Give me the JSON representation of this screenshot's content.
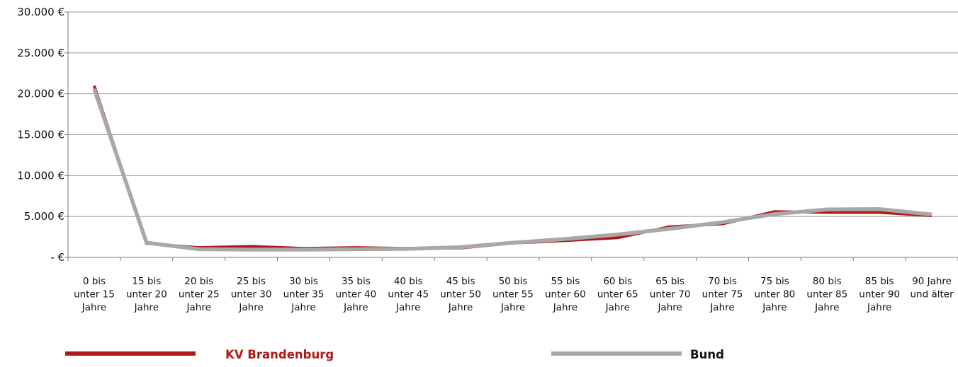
{
  "chart_data": {
    "type": "line",
    "categories": [
      [
        "0 bis",
        "unter 15",
        "Jahre"
      ],
      [
        "15 bis",
        "unter 20",
        "Jahre"
      ],
      [
        "20 bis",
        "unter 25",
        "Jahre"
      ],
      [
        "25 bis",
        "unter 30",
        "Jahre"
      ],
      [
        "30 bis",
        "unter 35",
        "Jahre"
      ],
      [
        "35 bis",
        "unter 40",
        "Jahre"
      ],
      [
        "40 bis",
        "unter 45",
        "Jahre"
      ],
      [
        "45 bis",
        "unter 50",
        "Jahre"
      ],
      [
        "50 bis",
        "unter 55",
        "Jahre"
      ],
      [
        "55 bis",
        "unter 60",
        "Jahre"
      ],
      [
        "60 bis",
        "unter 65",
        "Jahre"
      ],
      [
        "65 bis",
        "unter 70",
        "Jahre"
      ],
      [
        "70 bis",
        "unter 75",
        "Jahre"
      ],
      [
        "75 bis",
        "unter 80",
        "Jahre"
      ],
      [
        "80 bis",
        "unter 85",
        "Jahre"
      ],
      [
        "85 bis",
        "unter 90",
        "Jahre"
      ],
      [
        "90 Jahre",
        "und älter"
      ]
    ],
    "series": [
      {
        "name": "KV Brandenburg",
        "color": "#b01818",
        "values": [
          21000,
          1700,
          1200,
          1350,
          1100,
          1200,
          1100,
          1150,
          1750,
          2050,
          2400,
          3750,
          4100,
          5600,
          5500,
          5500,
          5100
        ]
      },
      {
        "name": "Bund",
        "color": "#a8a8a8",
        "values": [
          20600,
          1800,
          1000,
          950,
          950,
          1000,
          1050,
          1250,
          1800,
          2250,
          2800,
          3500,
          4300,
          5300,
          5850,
          5900,
          5250
        ]
      }
    ],
    "yticks": [
      0,
      5000,
      10000,
      15000,
      20000,
      25000,
      30000
    ],
    "ytick_labels": [
      "- €",
      "5.000 €",
      "10.000 €",
      "15.000 €",
      "20.000 €",
      "25.000 €",
      "30.000 €"
    ],
    "ylim": [
      0,
      30000
    ],
    "grid": true,
    "legend_position": "bottom"
  }
}
